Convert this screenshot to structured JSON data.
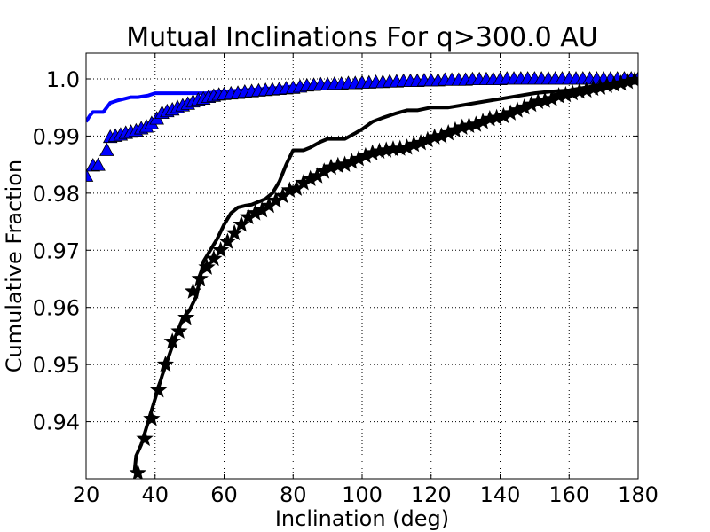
{
  "chart_data": {
    "type": "line",
    "title": "Mutual Inclinations For q>300.0 AU",
    "xlabel": "Inclination (deg)",
    "ylabel": "Cumulative Fraction",
    "xlim": [
      20,
      180
    ],
    "ylim": [
      0.93,
      1.0045
    ],
    "grid": true,
    "x_ticks": [
      20,
      40,
      60,
      80,
      100,
      120,
      140,
      160,
      180
    ],
    "x_tick_labels": [
      "20",
      "40",
      "60",
      "80",
      "100",
      "120",
      "140",
      "160",
      "180"
    ],
    "y_ticks": [
      0.94,
      0.95,
      0.96,
      0.97,
      0.98,
      0.99,
      1.0
    ],
    "y_tick_labels": [
      "0.94",
      "0.95",
      "0.96",
      "0.97",
      "0.98",
      "0.99",
      "1.0"
    ],
    "series": [
      {
        "style": "line",
        "color": "#0000ff",
        "x": [
          20,
          21,
          22,
          25,
          27,
          29,
          31,
          33,
          35,
          38,
          40,
          45,
          50,
          55,
          60,
          65,
          70,
          75,
          80,
          90,
          100,
          120,
          140,
          160,
          180
        ],
        "y": [
          0.9925,
          0.9935,
          0.9942,
          0.9942,
          0.9958,
          0.9962,
          0.9965,
          0.9968,
          0.9968,
          0.9971,
          0.9975,
          0.9975,
          0.9975,
          0.9975,
          0.9978,
          0.998,
          0.9982,
          0.9984,
          0.9987,
          0.999,
          0.9993,
          0.9996,
          0.9998,
          0.9999,
          1.0
        ]
      },
      {
        "style": "markers",
        "marker": "triangle",
        "color": "#0000ff",
        "x": [
          20,
          22,
          23.5,
          26,
          27,
          28.5,
          30,
          31.5,
          33,
          34.5,
          36,
          37.5,
          39,
          40.5,
          42,
          43.5,
          45,
          46.5,
          48,
          49.5,
          51,
          52.5,
          54,
          55.5,
          57,
          58.5,
          60,
          62,
          64,
          66,
          68,
          70,
          72,
          74,
          76,
          78,
          80,
          82,
          84,
          86,
          88,
          90,
          92,
          94,
          96,
          98,
          100,
          102,
          104,
          106,
          108,
          110,
          112,
          114,
          116,
          118,
          120,
          122,
          124,
          126,
          128,
          130,
          132,
          134,
          136,
          138,
          140,
          142,
          144,
          146,
          148,
          150,
          152,
          154,
          156,
          158,
          160,
          162,
          164,
          166,
          168,
          170,
          172,
          174,
          176,
          178,
          180
        ],
        "y": [
          0.983,
          0.9848,
          0.9849,
          0.9875,
          0.9898,
          0.99,
          0.9902,
          0.9905,
          0.9907,
          0.9909,
          0.9913,
          0.9916,
          0.9922,
          0.993,
          0.994,
          0.9943,
          0.9946,
          0.995,
          0.9953,
          0.9956,
          0.996,
          0.9963,
          0.9965,
          0.9968,
          0.997,
          0.9972,
          0.9973,
          0.9974,
          0.9975,
          0.9977,
          0.9978,
          0.9979,
          0.998,
          0.9981,
          0.9982,
          0.9983,
          0.9984,
          0.9986,
          0.9988,
          0.9989,
          0.999,
          0.999,
          0.9991,
          0.9991,
          0.9992,
          0.9992,
          0.9993,
          0.9993,
          0.9994,
          0.9994,
          0.9995,
          0.9995,
          0.9996,
          0.9996,
          0.9996,
          0.9997,
          0.9997,
          0.9997,
          0.9998,
          0.9998,
          0.9998,
          0.9998,
          0.9999,
          0.9999,
          0.9999,
          0.9999,
          0.9999,
          1.0,
          1.0,
          1.0,
          1.0,
          1.0,
          1.0,
          1.0,
          1.0,
          1.0,
          1.0,
          1.0,
          1.0,
          1.0,
          1.0,
          1.0,
          1.0,
          1.0,
          1.0,
          1.0,
          1.0
        ]
      },
      {
        "style": "line",
        "color": "#000000",
        "x": [
          34,
          34.5,
          36,
          38,
          40,
          42,
          44,
          46,
          48,
          50,
          52,
          54,
          56,
          58,
          60,
          62,
          64,
          66,
          68,
          70,
          72,
          74,
          76,
          78,
          80,
          83,
          85,
          88,
          90,
          95,
          98,
          100,
          103,
          106,
          110,
          113,
          116,
          120,
          125,
          130,
          135,
          140,
          145,
          150,
          155,
          160,
          165,
          170,
          175,
          180
        ],
        "y": [
          0.931,
          0.934,
          0.936,
          0.94,
          0.944,
          0.948,
          0.9515,
          0.955,
          0.958,
          0.9595,
          0.962,
          0.968,
          0.97,
          0.972,
          0.9745,
          0.9765,
          0.9775,
          0.9778,
          0.978,
          0.9785,
          0.979,
          0.98,
          0.982,
          0.985,
          0.9875,
          0.9875,
          0.988,
          0.989,
          0.9895,
          0.9895,
          0.9905,
          0.9912,
          0.9925,
          0.9932,
          0.994,
          0.9945,
          0.9945,
          0.995,
          0.995,
          0.9955,
          0.996,
          0.9965,
          0.997,
          0.9975,
          0.9978,
          0.998,
          0.9985,
          0.999,
          0.9995,
          1.0
        ]
      },
      {
        "style": "markers",
        "marker": "star",
        "color": "#000000",
        "x": [
          35,
          37,
          39,
          41,
          43,
          45,
          47,
          49,
          51,
          53,
          55,
          57,
          59,
          61,
          63,
          65,
          67,
          69,
          71,
          73,
          75,
          77,
          79,
          81,
          83,
          85,
          87,
          89,
          91,
          93,
          95,
          97,
          99,
          101,
          103,
          105,
          107,
          109,
          111,
          113,
          115,
          117,
          119,
          121,
          123,
          125,
          127,
          129,
          131,
          133,
          135,
          137,
          139,
          141,
          143,
          145,
          147,
          149,
          151,
          153,
          155,
          157,
          159,
          161,
          163,
          165,
          167,
          169,
          171,
          173,
          175,
          177,
          179
        ],
        "y": [
          0.931,
          0.937,
          0.9405,
          0.9455,
          0.95,
          0.954,
          0.9558,
          0.9582,
          0.9628,
          0.965,
          0.967,
          0.9685,
          0.97,
          0.9715,
          0.973,
          0.9745,
          0.9758,
          0.9765,
          0.977,
          0.9778,
          0.9787,
          0.9795,
          0.9805,
          0.9808,
          0.9818,
          0.9825,
          0.983,
          0.9838,
          0.9845,
          0.9848,
          0.985,
          0.9855,
          0.986,
          0.9865,
          0.987,
          0.9873,
          0.9875,
          0.9877,
          0.9878,
          0.988,
          0.9885,
          0.9888,
          0.9893,
          0.9898,
          0.99,
          0.9905,
          0.991,
          0.9915,
          0.9918,
          0.992,
          0.9925,
          0.993,
          0.9932,
          0.9935,
          0.994,
          0.9945,
          0.995,
          0.9955,
          0.996,
          0.9962,
          0.9965,
          0.997,
          0.9972,
          0.9975,
          0.9978,
          0.998,
          0.9983,
          0.9985,
          0.9988,
          0.999,
          0.9992,
          0.9995,
          0.9998
        ]
      }
    ]
  }
}
